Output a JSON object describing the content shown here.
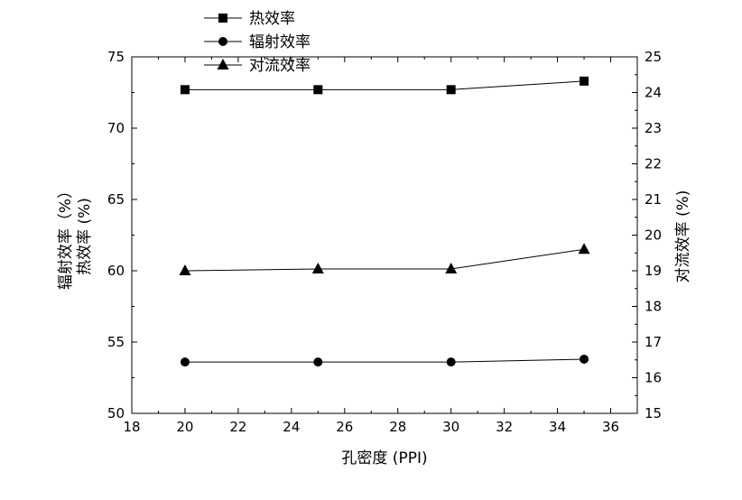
{
  "chart_data": {
    "type": "line",
    "x": [
      20,
      25,
      30,
      35
    ],
    "xlabel": "孔密度 (PPI)",
    "xlim": [
      18,
      37
    ],
    "xticks": [
      18,
      20,
      22,
      24,
      26,
      28,
      30,
      32,
      34,
      36
    ],
    "ylabel_left_line1": "辐射效率（%）",
    "ylabel_left_line2": "热效率 (%)",
    "ylim_left": [
      50,
      75
    ],
    "yticks_left": [
      50,
      55,
      60,
      65,
      70,
      75
    ],
    "ylabel_right": "对流效率 (%)",
    "ylim_right": [
      15,
      25
    ],
    "yticks_right": [
      15,
      16,
      17,
      18,
      19,
      20,
      21,
      22,
      23,
      24,
      25
    ],
    "grid": false,
    "legend_position": "top-left",
    "series": [
      {
        "name": "热效率",
        "marker": "square",
        "axis": "left",
        "values": [
          72.7,
          72.7,
          72.7,
          73.3
        ]
      },
      {
        "name": "辐射效率",
        "marker": "circle",
        "axis": "left",
        "values": [
          53.6,
          53.6,
          53.6,
          53.8
        ]
      },
      {
        "name": "对流效率",
        "marker": "triangle",
        "axis": "right",
        "values": [
          19.0,
          19.05,
          19.05,
          19.6
        ]
      }
    ]
  }
}
